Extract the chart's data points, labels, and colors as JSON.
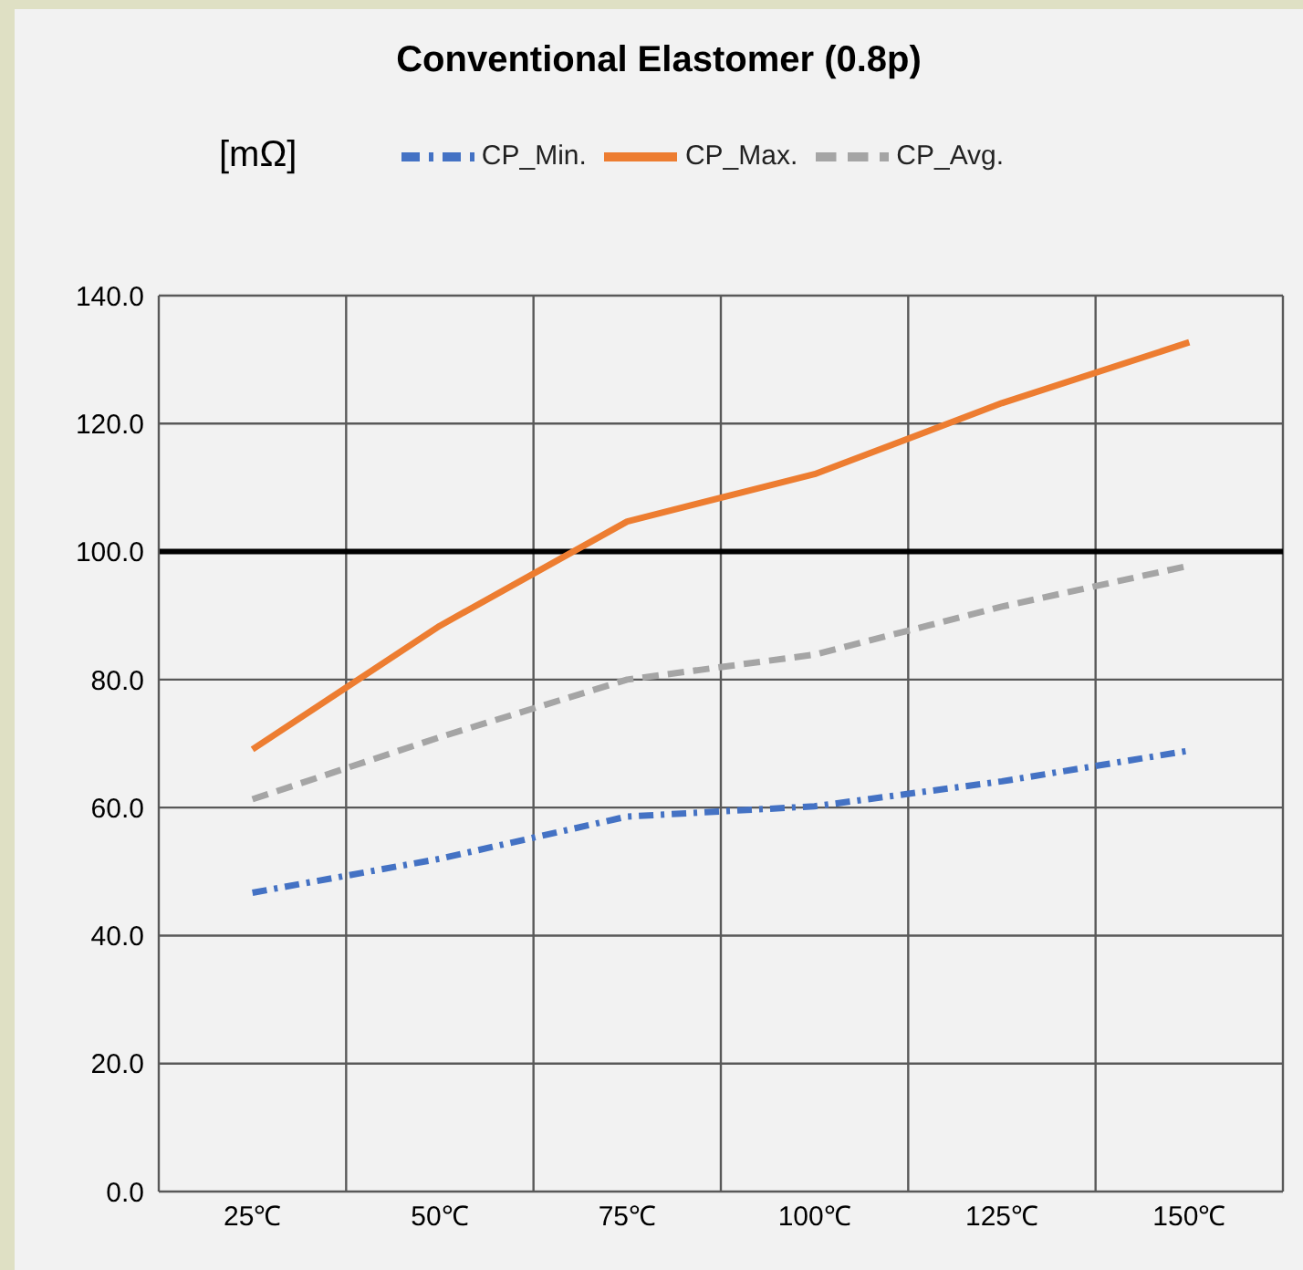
{
  "chart_data": {
    "type": "line",
    "title": "Conventional Elastomer (0.8p)",
    "ylabel": "[mΩ]",
    "categories": [
      "25℃",
      "50℃",
      "75℃",
      "100℃",
      "125℃",
      "150℃"
    ],
    "series": [
      {
        "name": "CP_Min.",
        "color": "#4472c4",
        "line_style": "dashdot",
        "values": [
          46.7,
          52.0,
          58.6,
          60.2,
          64.1,
          68.9
        ]
      },
      {
        "name": "CP_Max.",
        "color": "#ed7d31",
        "line_style": "solid",
        "values": [
          69.1,
          88.4,
          104.7,
          112.1,
          123.2,
          132.7
        ]
      },
      {
        "name": "CP_Avg.",
        "color": "#a5a5a5",
        "line_style": "dashed",
        "values": [
          61.3,
          71.0,
          80.0,
          83.9,
          91.4,
          97.8
        ]
      }
    ],
    "ylim": [
      0,
      140
    ],
    "yticks": [
      {
        "value": 0,
        "label": "0.0"
      },
      {
        "value": 20,
        "label": "20.0"
      },
      {
        "value": 40,
        "label": "40.0"
      },
      {
        "value": 60,
        "label": "60.0"
      },
      {
        "value": 80,
        "label": "80.0"
      },
      {
        "value": 100,
        "label": "100.0"
      },
      {
        "value": 120,
        "label": "120.0"
      },
      {
        "value": 140,
        "label": "140.0"
      }
    ],
    "ref_lines": [
      {
        "axis": "y",
        "value": 100,
        "color": "#000000"
      }
    ],
    "grid": true,
    "legend": "top",
    "marker": "none"
  }
}
